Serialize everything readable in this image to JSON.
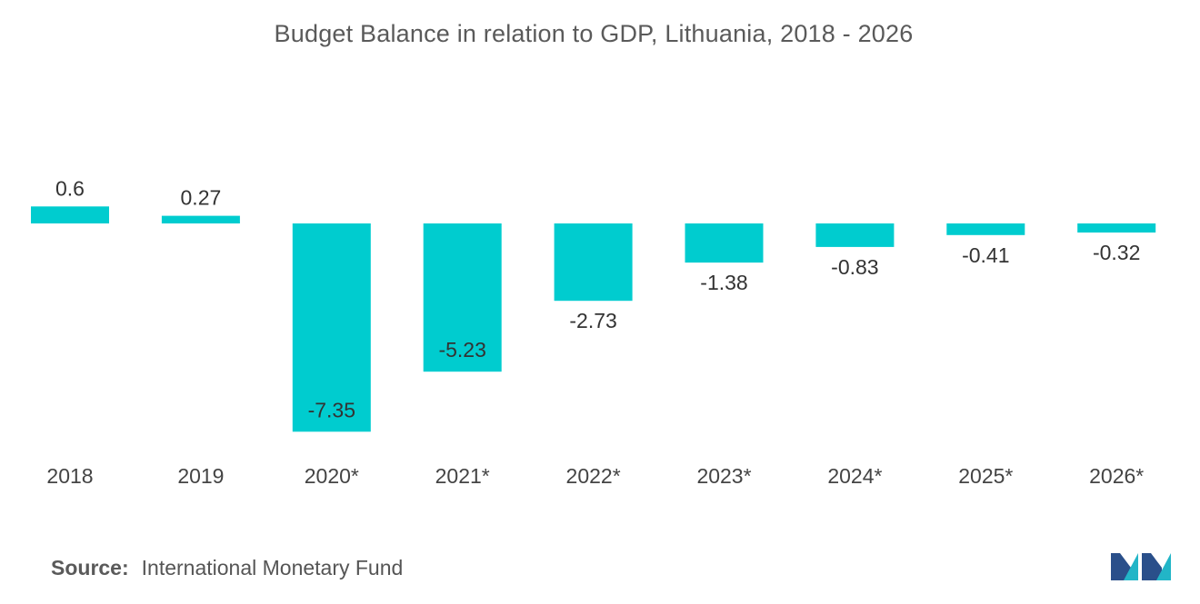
{
  "chart_data": {
    "type": "bar",
    "title": "Budget Balance in relation to GDP, Lithuania, 2018 - 2026",
    "categories": [
      "2018",
      "2019",
      "2020*",
      "2021*",
      "2022*",
      "2023*",
      "2024*",
      "2025*",
      "2026*"
    ],
    "values": [
      0.6,
      0.27,
      -7.35,
      -5.23,
      -2.73,
      -1.38,
      -0.83,
      -0.41,
      -0.32
    ],
    "value_labels": [
      "0.6",
      "0.27",
      "-7.35",
      "-5.23",
      "-2.73",
      "-1.38",
      "-0.83",
      "-0.41",
      "-0.32"
    ],
    "xlabel": "",
    "ylabel": "",
    "ylim": [
      -7.35,
      0.6
    ],
    "grid": false,
    "bar_color": "#00cccf"
  },
  "source": {
    "label": "Source:",
    "text": "International Monetary Fund"
  },
  "logo": {
    "icon": "mordor-intelligence-logo-icon",
    "colors": [
      "#2a4f8a",
      "#22b5c7"
    ]
  }
}
